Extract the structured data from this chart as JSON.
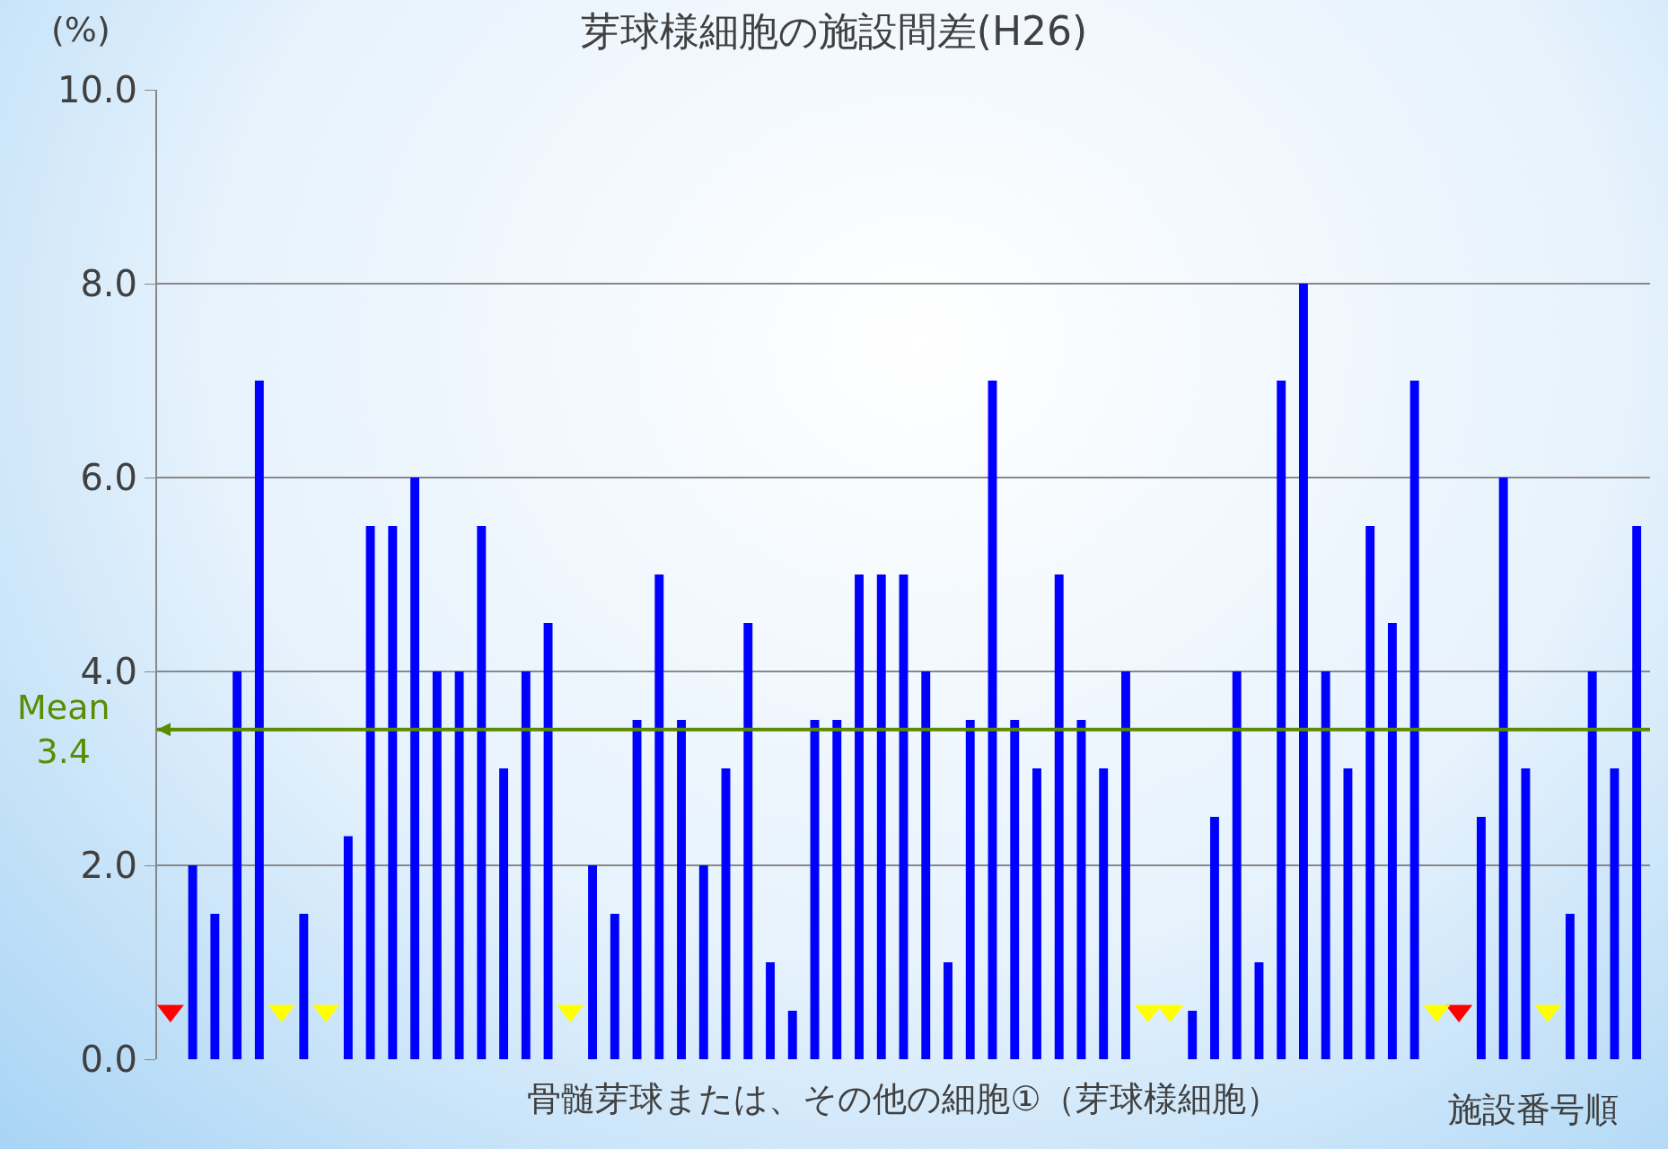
{
  "chart_data": {
    "type": "bar",
    "title": "芽球様細胞の施設間差(H26)",
    "ylabel": "(%)",
    "xlabel": "骨髄芽球または、その他の細胞①（芽球様細胞）",
    "annotations": [
      "施設番号順"
    ],
    "categories": [
      null,
      null,
      null,
      null,
      null,
      null,
      null,
      null,
      null,
      null,
      null,
      null,
      null,
      null,
      null,
      null,
      null,
      null,
      null,
      null,
      null,
      null,
      null,
      null,
      null,
      null,
      null,
      null,
      null,
      null,
      null,
      null,
      null,
      null,
      null,
      null,
      null,
      null,
      null,
      null,
      null,
      null,
      null,
      null,
      null,
      null,
      null,
      null,
      null,
      null,
      null,
      null,
      null,
      null,
      null,
      null,
      null,
      null,
      null,
      null,
      null,
      null,
      null,
      null,
      null,
      null,
      null
    ],
    "series": [
      {
        "color": "#0000ff",
        "values": [
          0,
          2,
          1.5,
          4,
          7,
          0,
          1.5,
          0,
          2.3,
          5.5,
          5.5,
          6,
          4,
          4,
          5.5,
          3,
          4,
          4.5,
          0,
          2,
          1.5,
          3.5,
          5,
          3.5,
          2,
          3,
          4.5,
          1,
          0.5,
          3.5,
          3.5,
          5,
          5,
          5,
          4,
          1,
          3.5,
          7,
          3.5,
          3,
          5,
          3.5,
          3,
          4,
          0,
          0,
          0.5,
          2.5,
          4,
          1,
          7,
          8,
          4,
          3,
          5.5,
          4.5,
          7,
          0,
          0,
          2.5,
          6,
          3,
          0,
          1.5,
          4,
          3,
          5.5
        ]
      },
      {
        "type": "scatter",
        "marker": "triangle",
        "color": "#ff0000",
        "values": [
          0.5,
          null,
          null,
          null,
          null,
          null,
          null,
          null,
          null,
          null,
          null,
          null,
          null,
          null,
          null,
          null,
          null,
          null,
          null,
          null,
          null,
          null,
          null,
          null,
          null,
          null,
          null,
          null,
          null,
          null,
          null,
          null,
          null,
          null,
          null,
          null,
          null,
          null,
          null,
          null,
          null,
          null,
          null,
          null,
          null,
          null,
          null,
          null,
          null,
          null,
          null,
          null,
          null,
          null,
          null,
          null,
          null,
          null,
          0.5,
          null,
          null,
          null,
          null,
          null,
          null,
          null,
          null
        ]
      },
      {
        "type": "scatter",
        "marker": "triangle",
        "color": "#ffff00",
        "values": [
          null,
          null,
          null,
          null,
          null,
          0.5,
          null,
          0.5,
          null,
          null,
          null,
          null,
          null,
          null,
          null,
          null,
          null,
          null,
          0.5,
          null,
          null,
          null,
          null,
          null,
          null,
          null,
          null,
          null,
          null,
          null,
          null,
          null,
          null,
          null,
          null,
          null,
          null,
          null,
          null,
          null,
          null,
          null,
          null,
          null,
          0.5,
          0.5,
          null,
          null,
          null,
          null,
          null,
          null,
          null,
          null,
          null,
          null,
          null,
          0.5,
          null,
          null,
          null,
          null,
          0.5,
          null,
          null,
          null,
          null
        ]
      }
    ],
    "ylim": [
      0,
      10
    ],
    "yticks": [
      {
        "value": 0,
        "label": "0.0"
      },
      {
        "value": 2,
        "label": "2.0"
      },
      {
        "value": 4,
        "label": "4.0"
      },
      {
        "value": 6,
        "label": "6.0"
      },
      {
        "value": 8,
        "label": "8.0"
      },
      {
        "value": 10,
        "label": "10.0"
      }
    ],
    "ref_lines": [
      {
        "axis": "y",
        "value": 3.4,
        "label": "Mean 3.4",
        "color": "#5b8c00"
      }
    ],
    "grid": "y",
    "legend": false
  }
}
